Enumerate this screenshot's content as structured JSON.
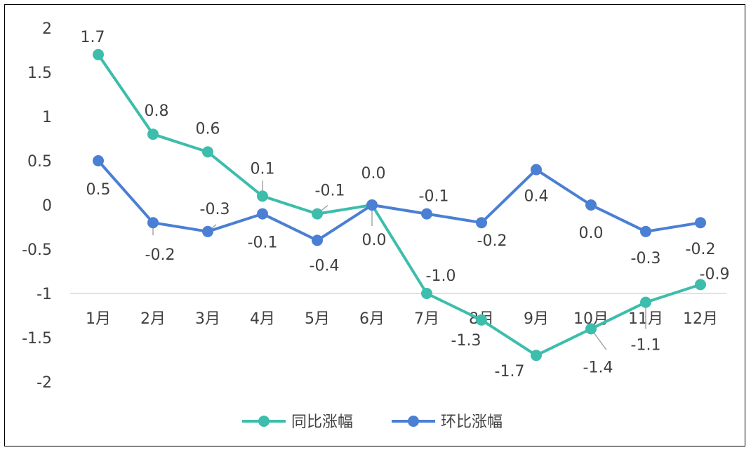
{
  "chart_data": {
    "type": "line",
    "categories": [
      "1月",
      "2月",
      "3月",
      "4月",
      "5月",
      "6月",
      "7月",
      "8月",
      "9月",
      "10月",
      "11月",
      "12月"
    ],
    "ylim": [
      -2,
      2
    ],
    "yticks": [
      "2",
      "1.5",
      "1",
      "0.5",
      "0",
      "-0.5",
      "-1",
      "-1.5",
      "-2"
    ],
    "xaxis_at": -1,
    "grid": false,
    "legend_position": "bottom",
    "series": [
      {
        "name": "同比涨幅",
        "color": "#3dbdac",
        "values": [
          1.7,
          0.8,
          0.6,
          0.1,
          -0.1,
          0.0,
          -1.0,
          -1.3,
          -1.7,
          -1.4,
          -1.1,
          -0.9
        ],
        "labels": [
          "1.7",
          "0.8",
          "0.6",
          "0.1",
          "-0.1",
          "0.0",
          "-1.0",
          "-1.3",
          "-1.7",
          "-1.4",
          "-1.1",
          "-0.9"
        ]
      },
      {
        "name": "环比涨幅",
        "color": "#4a7fd4",
        "values": [
          0.5,
          -0.2,
          -0.3,
          -0.1,
          -0.4,
          0.0,
          -0.1,
          -0.2,
          0.4,
          0.0,
          -0.3,
          -0.2
        ],
        "labels": [
          "0.5",
          "-0.2",
          "-0.3",
          "-0.1",
          "-0.4",
          "0.0",
          "-0.1",
          "-0.2",
          "0.4",
          "0.0",
          "-0.3",
          "-0.2"
        ]
      }
    ]
  }
}
